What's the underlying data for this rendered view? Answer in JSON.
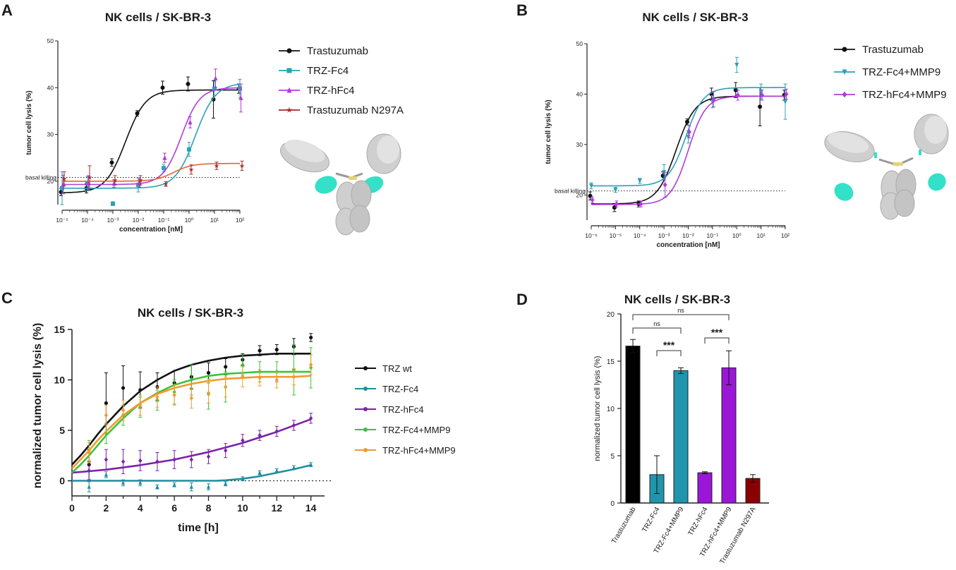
{
  "panels": {
    "A": "A",
    "B": "B",
    "C": "C",
    "D": "D"
  },
  "colors": {
    "trastuzumab": "#111111",
    "fc4": "#2aa1b8",
    "hfc4": "#b03cdc",
    "n297a": "#a52a2a",
    "hc_trast": "#e8632f",
    "trz_fc4_mmp9_curve": "#3f3f3f",
    "green": "#3cc43c",
    "orange": "#f39a2e",
    "purple": "#7b22a8",
    "teal": "#1f8ea0",
    "barTrast": "#000000",
    "barFc4": "#1f96ad",
    "barHfc4": "#9b16d6",
    "barN297a": "#8b0000",
    "antibodyGray": "#c9c9c9",
    "antibodyCyan": "#33e0c8"
  },
  "chart_data": [
    {
      "id": "A",
      "type": "scatter",
      "title": "NK cells / SK-BR-3",
      "xlabel": "concentration [nM]",
      "ylabel": "tumor cell lysis (%)",
      "xscale": "log",
      "xlim": [
        -5,
        2
      ],
      "x_ticks": [
        "10⁻⁵",
        "10⁻⁴",
        "10⁻³",
        "10⁻²",
        "10⁻¹",
        "10⁰",
        "10¹",
        "10²"
      ],
      "ylim": [
        15,
        50
      ],
      "y_ticks": [
        "20",
        "30",
        "40",
        "50"
      ],
      "reference_line": {
        "y": 20.8,
        "label": "basal killing"
      },
      "series": [
        {
          "name": "Trastuzumab",
          "color_key": "trastuzumab",
          "marker": "circle",
          "logx": [
            -5,
            -4,
            -3,
            -2,
            -1,
            0,
            1,
            2
          ],
          "y": [
            17.7,
            18.5,
            24.0,
            34.5,
            40.0,
            40.8,
            37.5,
            39.8
          ],
          "err": [
            0.8,
            1.0,
            0.8,
            0.6,
            1.4,
            1.5,
            4.0,
            1.0
          ],
          "fit": {
            "bottom": 17.5,
            "top": 39.5,
            "logEC50": -2.5,
            "hill": 1.1
          }
        },
        {
          "name": "TRZ-Fc4",
          "color_key": "fc4",
          "marker": "square",
          "logx": [
            -5,
            -4,
            -3,
            -2,
            -1,
            0,
            1,
            2
          ],
          "y": [
            18.5,
            19.5,
            15.2,
            19.2,
            22.8,
            26.8,
            39.8,
            39.8
          ],
          "err": [
            3.5,
            1.5,
            0.4,
            1.5,
            0.8,
            1.5,
            1.5,
            2.0
          ],
          "fit": {
            "bottom": 18.5,
            "top": 41,
            "logEC50": 0.25,
            "hill": 1.1
          }
        },
        {
          "name": "TRZ-hFc4",
          "color_key": "hfc4",
          "marker": "triangle",
          "logx": [
            -5,
            -4,
            -3,
            -2,
            -1,
            0,
            1,
            2
          ],
          "y": [
            19.3,
            19.7,
            19.5,
            19.7,
            25.0,
            32.6,
            42.0,
            37.8
          ],
          "err": [
            2.0,
            1.5,
            0.8,
            1.0,
            1.0,
            1.2,
            2.0,
            3.0
          ],
          "fit": {
            "bottom": 19.3,
            "top": 40,
            "logEC50": -0.3,
            "hill": 1.2
          }
        },
        {
          "name": "Trastuzumab N297A",
          "color_key": "n297a",
          "marker": "star",
          "logx": [
            -5,
            -4,
            -3,
            -2,
            -1,
            0,
            1,
            2
          ],
          "y": [
            20.5,
            20.8,
            20.2,
            20.2,
            19.4,
            22.5,
            23.3,
            23.3
          ],
          "err": [
            1.5,
            2.5,
            1.0,
            1.0,
            0.5,
            1.0,
            0.8,
            1.0
          ],
          "fit": {
            "bottom": 20.0,
            "top": 23.8,
            "logEC50": -0.6,
            "hill": 1.2
          }
        }
      ]
    },
    {
      "id": "B",
      "type": "scatter",
      "title": "NK cells / SK-BR-3",
      "xlabel": "concentration [nM]",
      "ylabel": "tumor cell lysis (%)",
      "xscale": "log",
      "xlim": [
        -6,
        2
      ],
      "x_ticks": [
        "10⁻⁶",
        "10⁻⁵",
        "10⁻⁴",
        "10⁻³",
        "10⁻²",
        "10⁻¹",
        "10⁰",
        "10¹",
        "10²"
      ],
      "ylim": [
        15,
        50
      ],
      "y_ticks": [
        "20",
        "30",
        "40",
        "50"
      ],
      "reference_line": {
        "y": 20.8,
        "label": "basal killing"
      },
      "series": [
        {
          "name": "Trastuzumab",
          "color_key": "trastuzumab",
          "marker": "circle",
          "logx": [
            -6,
            -5,
            -4,
            -3,
            -2,
            -1,
            0,
            1,
            2
          ],
          "y": [
            19.8,
            17.5,
            18.2,
            23.8,
            34.5,
            40.0,
            40.8,
            37.5,
            39.8
          ],
          "err": [
            0.8,
            0.8,
            0.6,
            0.8,
            0.6,
            1.2,
            1.5,
            3.8,
            1.0
          ],
          "fit": {
            "bottom": 18.2,
            "top": 39.6,
            "logEC50": -2.5,
            "hill": 1.1
          }
        },
        {
          "name": "TRZ-Fc4+MMP9",
          "color_key": "fc4",
          "marker": "triangle-down",
          "logx": [
            -6,
            -5,
            -4,
            -3,
            -2,
            -1,
            0,
            1,
            2
          ],
          "y": [
            21.8,
            21.0,
            22.8,
            24.5,
            31.5,
            38.5,
            45.8,
            40.5,
            38.5
          ],
          "err": [
            0.6,
            0.5,
            0.5,
            1.5,
            1.2,
            1.2,
            1.5,
            1.5,
            3.5
          ],
          "fit": {
            "bottom": 21.8,
            "top": 41.3,
            "logEC50": -2.1,
            "hill": 1.2
          }
        },
        {
          "name": "TRZ-hFc4+MMP9",
          "color_key": "hfc4",
          "marker": "diamond",
          "logx": [
            -6,
            -5,
            -4,
            -3,
            -2,
            -1,
            0,
            1,
            2
          ],
          "y": [
            19.0,
            18.2,
            18.2,
            22.0,
            32.5,
            39.0,
            39.8,
            39.8,
            40.0
          ],
          "err": [
            0.6,
            0.6,
            0.6,
            2.5,
            1.2,
            1.5,
            1.0,
            1.0,
            1.0
          ],
          "fit": {
            "bottom": 18.1,
            "top": 39.6,
            "logEC50": -2.0,
            "hill": 1.2
          }
        }
      ]
    },
    {
      "id": "C",
      "type": "scatter",
      "title": "NK cells / SK-BR-3",
      "xlabel": "time [h]",
      "ylabel": "normalized tumor cell lysis (%)",
      "xlim": [
        0,
        14.8
      ],
      "x_ticks": [
        "0",
        "2",
        "4",
        "6",
        "8",
        "10",
        "12",
        "14"
      ],
      "ylim": [
        -1.5,
        15
      ],
      "y_ticks": [
        "0",
        "5",
        "10",
        "15"
      ],
      "reference_line": {
        "y": 0
      },
      "series": [
        {
          "name": "TRZ wt",
          "color_key": "trastuzumab",
          "x": [
            1,
            2,
            3,
            4,
            5,
            6,
            7,
            8,
            9,
            10,
            11,
            12,
            13,
            14
          ],
          "y": [
            1.6,
            7.7,
            9.2,
            9.0,
            9.3,
            9.7,
            10.3,
            10.7,
            11.3,
            12.0,
            12.9,
            13.0,
            13.3,
            14.2
          ],
          "err": [
            1.5,
            3.0,
            2.2,
            1.8,
            1.4,
            1.2,
            1.2,
            1.0,
            0.8,
            0.6,
            0.5,
            0.5,
            0.8,
            0.4
          ],
          "fit": {
            "x": [
              0,
              0.5,
              1,
              1.5,
              2,
              3,
              4,
              5,
              6,
              7,
              8,
              9,
              10,
              11,
              12,
              13,
              14
            ],
            "y": [
              1.6,
              2.5,
              3.5,
              4.6,
              5.6,
              7.4,
              8.9,
              10.0,
              10.9,
              11.5,
              11.9,
              12.2,
              12.4,
              12.5,
              12.6,
              12.6,
              12.6
            ]
          }
        },
        {
          "name": "TRZ-Fc4",
          "color_key": "teal",
          "x": [
            1,
            2,
            3,
            4,
            5,
            6,
            7,
            8,
            9,
            10,
            11,
            12,
            13,
            14
          ],
          "y": [
            -0.6,
            0.6,
            -0.2,
            -0.2,
            -0.6,
            -0.4,
            -0.6,
            -0.6,
            -0.3,
            0.2,
            0.8,
            1.0,
            1.3,
            1.6
          ],
          "err": [
            0.5,
            0.3,
            0.3,
            0.3,
            0.2,
            0.2,
            0.4,
            0.3,
            0.2,
            0.2,
            0.2,
            0.2,
            0.2,
            0.2
          ],
          "fit": {
            "x": [
              0,
              1,
              2,
              3,
              4,
              5,
              6,
              7,
              8,
              8.5,
              9,
              10,
              11,
              12,
              13,
              14
            ],
            "y": [
              0,
              0,
              0,
              0,
              0,
              0,
              0,
              0,
              0,
              0.01,
              0.05,
              0.2,
              0.45,
              0.8,
              1.15,
              1.55
            ]
          }
        },
        {
          "name": "TRZ-hFc4",
          "color_key": "purple",
          "x": [
            1,
            2,
            3,
            4,
            5,
            6,
            7,
            8,
            9,
            10,
            11,
            12,
            13,
            14
          ],
          "y": [
            1.0,
            2.1,
            1.9,
            2.0,
            1.9,
            2.1,
            2.1,
            2.4,
            3.0,
            4.0,
            4.5,
            4.9,
            5.5,
            6.2
          ],
          "err": [
            0.9,
            1.0,
            1.2,
            1.0,
            0.9,
            0.9,
            0.8,
            0.7,
            0.7,
            0.6,
            0.5,
            0.5,
            0.5,
            0.5
          ],
          "fit": {
            "x": [
              0,
              2,
              4,
              6,
              8,
              10,
              12,
              14
            ],
            "y": [
              0.8,
              1.1,
              1.55,
              2.1,
              2.85,
              3.75,
              4.85,
              6.1
            ]
          }
        },
        {
          "name": "TRZ-Fc4+MMP9",
          "color_key": "green",
          "x": [
            1,
            2,
            3,
            4,
            5,
            6,
            7,
            8,
            9,
            10,
            11,
            12,
            13,
            14
          ],
          "y": [
            3.0,
            4.7,
            6.5,
            7.3,
            8.0,
            8.8,
            10.0,
            8.6,
            9.3,
            11.5,
            10.8,
            10.8,
            11.0,
            11.2
          ],
          "err": [
            1.0,
            1.0,
            1.0,
            1.0,
            1.0,
            1.2,
            1.5,
            1.5,
            1.5,
            1.0,
            1.0,
            1.0,
            2.5,
            2.0
          ],
          "fit": {
            "x": [
              0,
              0.5,
              1,
              1.5,
              2,
              3,
              4,
              5,
              6,
              7,
              8,
              9,
              10,
              11,
              12,
              13,
              14
            ],
            "y": [
              0.8,
              1.6,
              2.5,
              3.5,
              4.5,
              6.2,
              7.7,
              8.7,
              9.5,
              10.0,
              10.4,
              10.6,
              10.7,
              10.8,
              10.8,
              10.8,
              10.8
            ]
          }
        },
        {
          "name": "TRZ-hFc4+MMP9",
          "color_key": "orange",
          "x": [
            1,
            2,
            3,
            4,
            5,
            6,
            7,
            8,
            9,
            10,
            11,
            12,
            13,
            14
          ],
          "y": [
            2.8,
            6.5,
            7.0,
            7.5,
            8.3,
            8.5,
            8.2,
            8.7,
            9.3,
            10.3,
            10.2,
            10.0,
            10.3,
            11.5
          ],
          "err": [
            1.0,
            1.0,
            1.0,
            1.0,
            1.0,
            1.0,
            1.0,
            1.0,
            1.0,
            1.0,
            0.8,
            0.8,
            0.8,
            1.0
          ],
          "fit": {
            "x": [
              0,
              0.5,
              1,
              1.5,
              2,
              3,
              4,
              5,
              6,
              7,
              8,
              9,
              10,
              11,
              12,
              13,
              14
            ],
            "y": [
              1.2,
              2.1,
              3.0,
              4.0,
              4.9,
              6.5,
              7.7,
              8.6,
              9.2,
              9.6,
              9.9,
              10.1,
              10.2,
              10.3,
              10.3,
              10.3,
              10.4
            ]
          }
        }
      ]
    },
    {
      "id": "D",
      "type": "bar",
      "title": "NK cells / SK-BR-3",
      "ylabel": "normalized tumor cell lysis (%)",
      "ylim": [
        0,
        20
      ],
      "y_ticks": [
        "0",
        "5",
        "10",
        "15",
        "20"
      ],
      "categories": [
        "Trastuzumab",
        "TRZ-Fc4",
        "TRZ-Fc4+MMP9",
        "TRZ-hFc4",
        "TRZ-hFc4+MMP9",
        "Trastuzumab N297A"
      ],
      "values": [
        16.6,
        3.0,
        14.0,
        3.2,
        14.3,
        2.6
      ],
      "err": [
        0.7,
        2.0,
        0.3,
        0.1,
        1.8,
        0.4
      ],
      "bar_color_keys": [
        "barTrast",
        "barFc4",
        "barFc4",
        "barHfc4",
        "barHfc4",
        "barN297a"
      ],
      "significance": [
        {
          "from": 0,
          "to": 4,
          "label": "ns"
        },
        {
          "from": 0,
          "to": 2,
          "label": "ns"
        },
        {
          "from": 1,
          "to": 2,
          "label": "***"
        },
        {
          "from": 3,
          "to": 4,
          "label": "***"
        }
      ]
    }
  ]
}
